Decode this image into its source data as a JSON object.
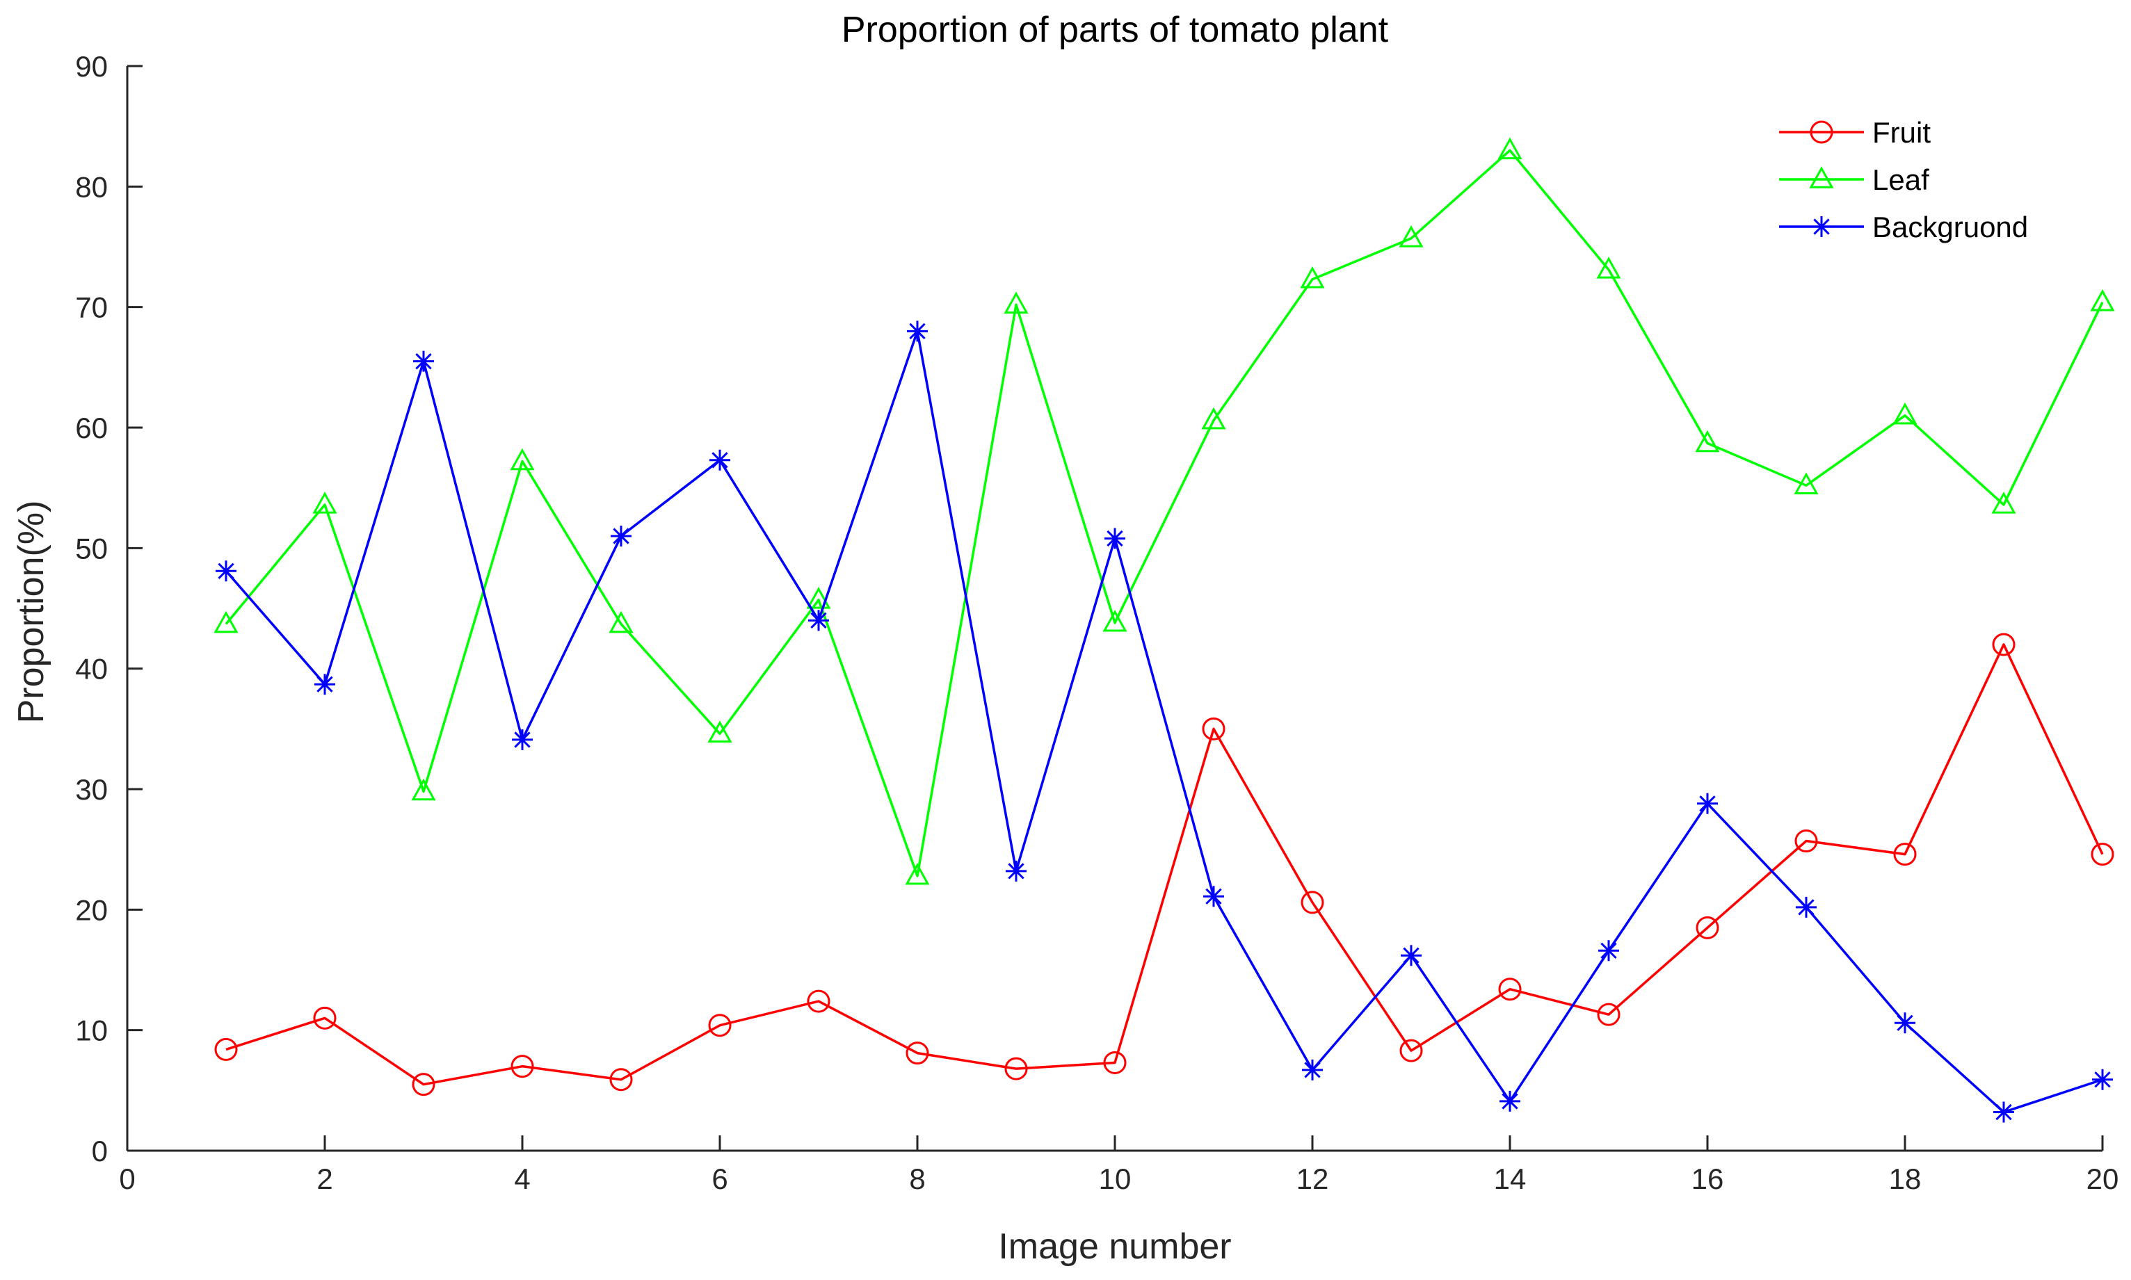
{
  "chart_data": {
    "type": "line",
    "title": "Proportion of parts of tomato plant",
    "xlabel": "Image number",
    "ylabel": "Proportion(%)",
    "xlim": [
      0,
      20
    ],
    "ylim": [
      0,
      90
    ],
    "xticks": [
      0,
      2,
      4,
      6,
      8,
      10,
      12,
      14,
      16,
      18,
      20
    ],
    "yticks": [
      0,
      10,
      20,
      30,
      40,
      50,
      60,
      70,
      80,
      90
    ],
    "grid": false,
    "legend_position": "top-right",
    "x": [
      1,
      2,
      3,
      4,
      5,
      6,
      7,
      8,
      9,
      10,
      11,
      12,
      13,
      14,
      15,
      16,
      17,
      18,
      19,
      20
    ],
    "series": [
      {
        "name": "Fruit",
        "color": "#ff0000",
        "marker": "circle",
        "values": [
          8.4,
          11.0,
          5.5,
          7.0,
          5.9,
          10.4,
          12.4,
          8.1,
          6.8,
          7.3,
          35.0,
          20.6,
          8.3,
          13.4,
          11.3,
          18.5,
          25.7,
          24.6,
          42.0,
          24.6
        ]
      },
      {
        "name": "Leaf",
        "color": "#00ff00",
        "marker": "triangle",
        "values": [
          43.7,
          53.6,
          29.8,
          57.2,
          43.7,
          34.6,
          45.7,
          22.8,
          70.2,
          43.8,
          60.6,
          72.3,
          75.7,
          83.0,
          73.1,
          58.7,
          55.2,
          61.0,
          53.6,
          70.4
        ]
      },
      {
        "name": "Backgruond",
        "color": "#0000ff",
        "marker": "star",
        "values": [
          48.1,
          38.7,
          65.5,
          34.1,
          51.0,
          57.3,
          44.0,
          68.0,
          23.2,
          50.8,
          21.1,
          6.7,
          16.2,
          4.1,
          16.6,
          28.8,
          20.2,
          10.6,
          3.2,
          5.9
        ]
      }
    ]
  }
}
